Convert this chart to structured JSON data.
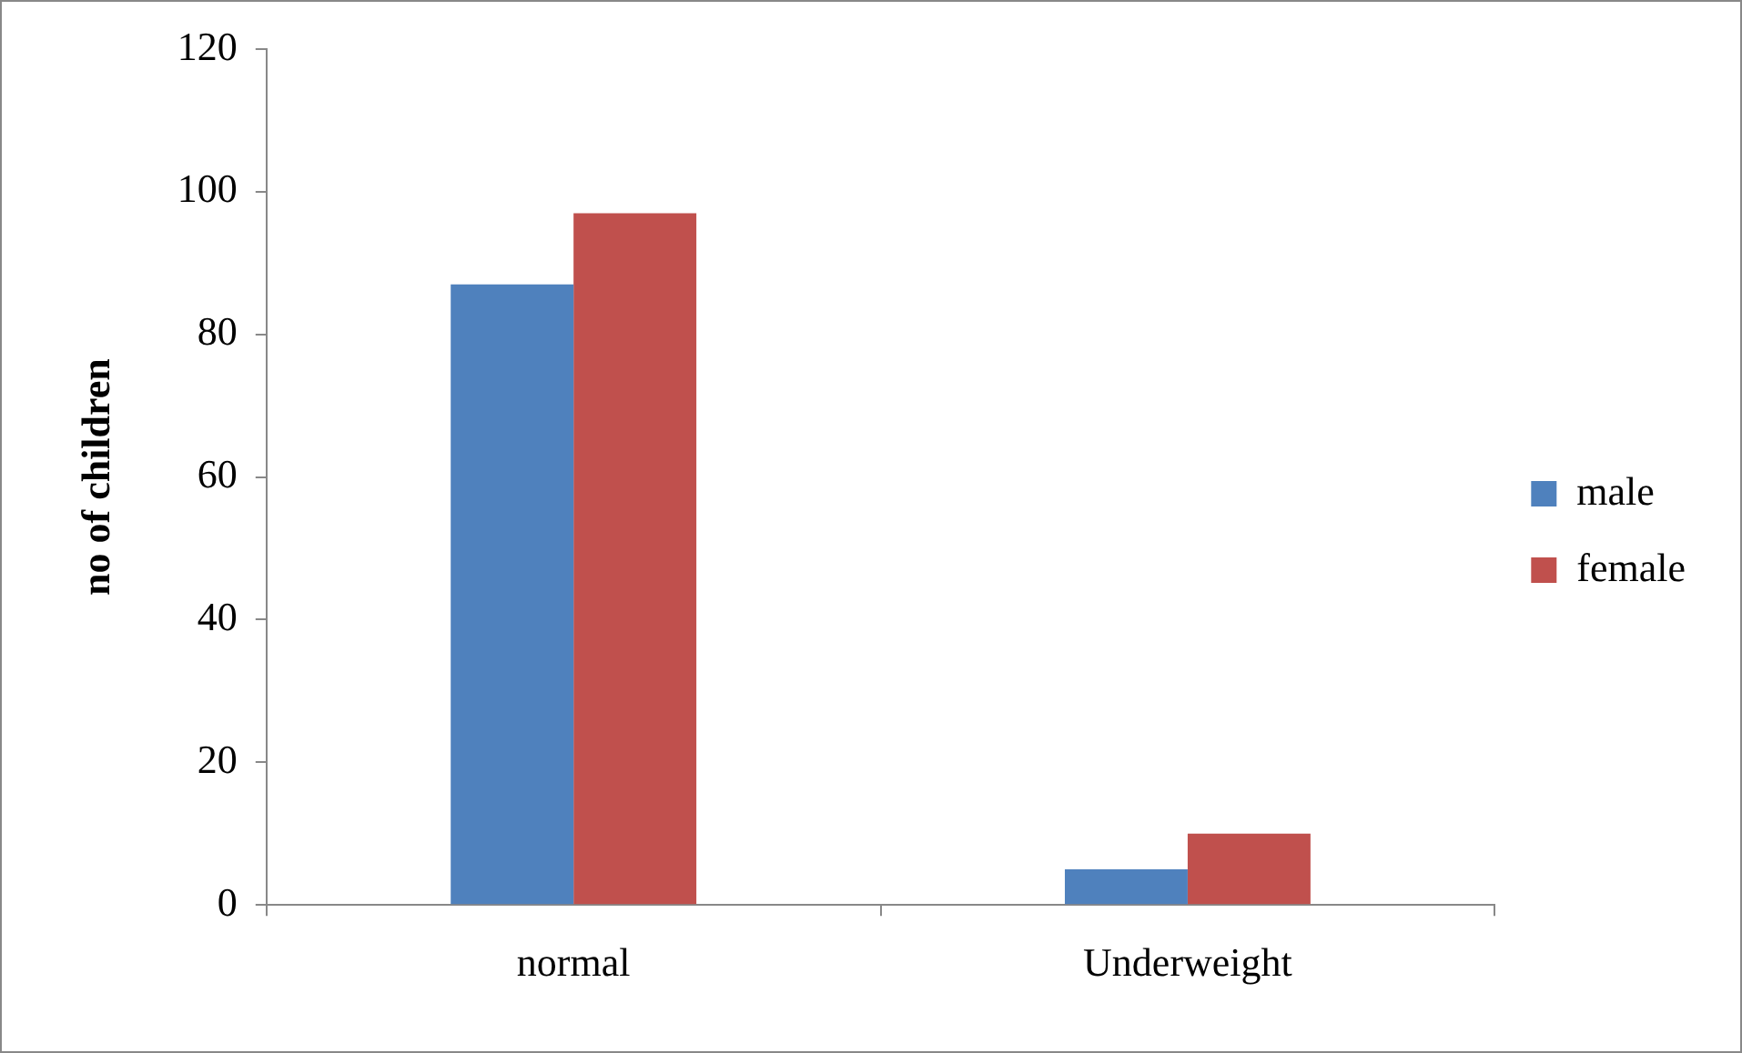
{
  "chart_data": {
    "type": "bar",
    "ylabel": "no of children",
    "categories": [
      "normal",
      "Underweight"
    ],
    "series": [
      {
        "name": "male",
        "color": "#4f81bd",
        "values": [
          87,
          5
        ]
      },
      {
        "name": "female",
        "color": "#c0504d",
        "values": [
          97,
          10
        ]
      }
    ],
    "ylim": [
      0,
      120
    ],
    "yticks": [
      0,
      20,
      40,
      60,
      80,
      100,
      120
    ],
    "grid": false,
    "legend": "right"
  }
}
